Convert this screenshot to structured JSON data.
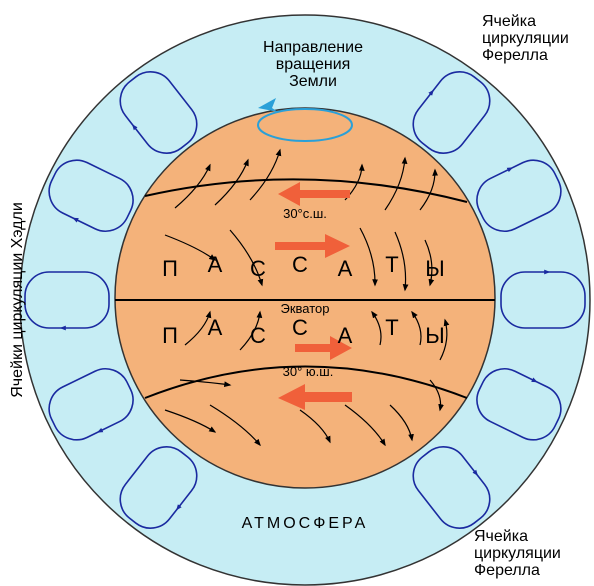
{
  "rotation_label": [
    "Направление",
    "вращения",
    "Земли"
  ],
  "ferrel_top": [
    "Ячейка",
    "циркуляции",
    "Ферелла"
  ],
  "ferrel_bottom": [
    "Ячейка",
    "циркуляции",
    "Ферелла"
  ],
  "hadley_label": "Ячейки циркуляции Хэдли",
  "lat_north": "30°с.ш.",
  "equator": "Экватор",
  "lat_south": "30° ю.ш.",
  "atmosphere": "АТМОСФЕРА",
  "trade_winds_north": [
    "П",
    "А",
    "С",
    "С",
    "А",
    "Т",
    "Ы"
  ],
  "trade_winds_south": [
    "П",
    "А",
    "С",
    "С",
    "А",
    "Т",
    "Ы"
  ]
}
